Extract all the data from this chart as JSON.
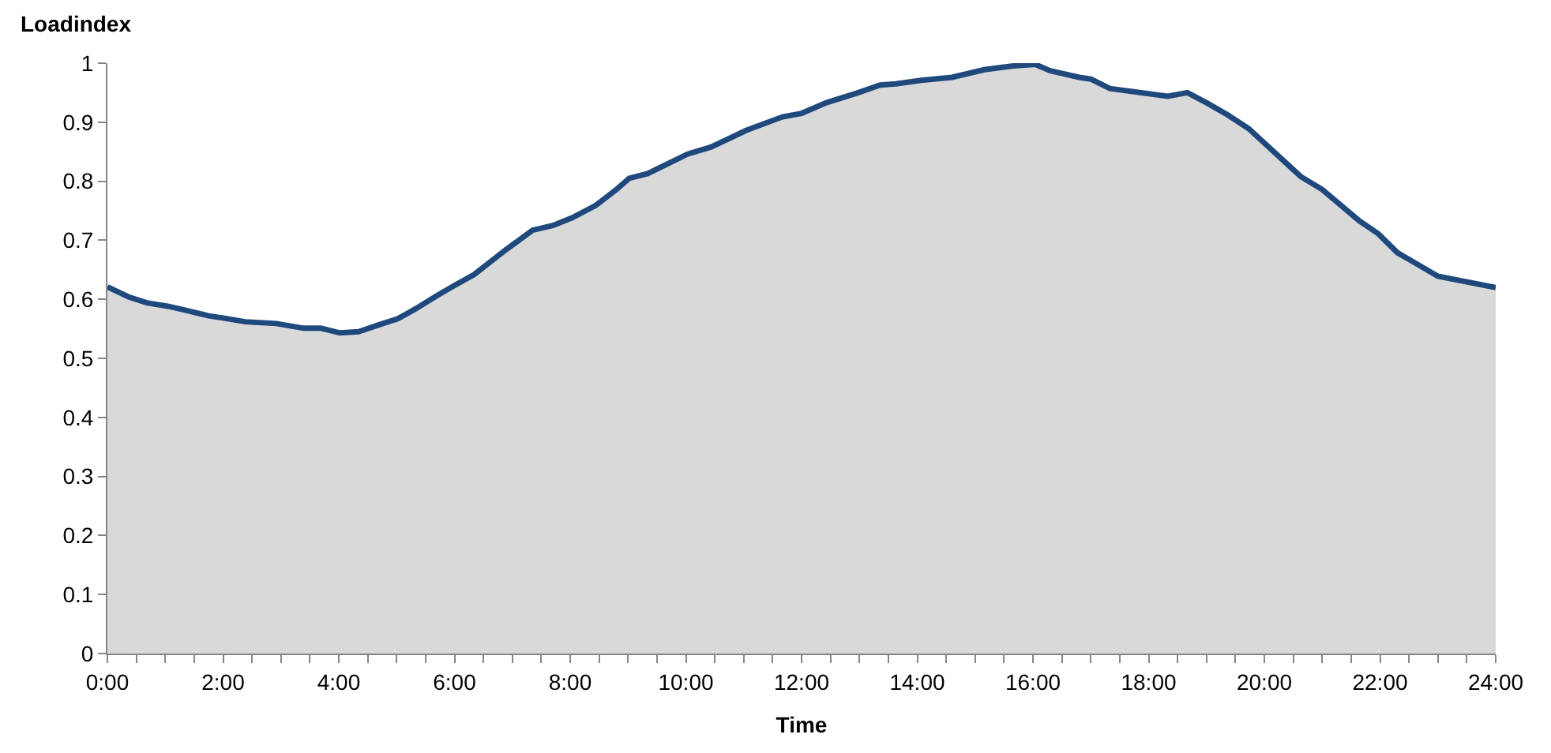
{
  "chart_data": {
    "type": "area",
    "ylabel": "Loadindex",
    "xlabel": "Time",
    "x": [
      0,
      0.37,
      0.68,
      1.06,
      1.37,
      1.75,
      2.02,
      2.38,
      2.92,
      3.39,
      3.69,
      4.02,
      4.34,
      4.7,
      5.02,
      5.33,
      5.71,
      6.01,
      6.34,
      6.89,
      7.35,
      7.7,
      8.03,
      8.44,
      8.8,
      9.02,
      9.34,
      10.03,
      10.44,
      11.04,
      11.67,
      12.0,
      12.43,
      12.95,
      13.36,
      13.63,
      14.07,
      14.6,
      15.16,
      15.63,
      16.04,
      16.3,
      16.8,
      17.0,
      17.33,
      18.33,
      18.67,
      19.0,
      19.37,
      19.73,
      20.63,
      21.0,
      21.64,
      21.97,
      22.3,
      23.0,
      24.0
    ],
    "series": [
      {
        "color": "#1f497d",
        "values": [
          0.621,
          0.604,
          0.594,
          0.588,
          0.581,
          0.572,
          0.568,
          0.562,
          0.559,
          0.551,
          0.551,
          0.543,
          0.545,
          0.557,
          0.567,
          0.584,
          0.607,
          0.624,
          0.642,
          0.684,
          0.717,
          0.725,
          0.738,
          0.759,
          0.786,
          0.805,
          0.813,
          0.846,
          0.858,
          0.886,
          0.909,
          0.915,
          0.933,
          0.949,
          0.963,
          0.965,
          0.971,
          0.976,
          0.989,
          0.995,
          0.998,
          0.987,
          0.976,
          0.973,
          0.957,
          0.944,
          0.95,
          0.933,
          0.912,
          0.889,
          0.808,
          0.786,
          0.733,
          0.711,
          0.679,
          0.639,
          0.62
        ]
      }
    ],
    "xlim": [
      0,
      24
    ],
    "xticks": [
      {
        "value": 0,
        "label": "0:00"
      },
      {
        "value": 0.5,
        "label": null
      },
      {
        "value": 1,
        "label": null
      },
      {
        "value": 1.5,
        "label": null
      },
      {
        "value": 2,
        "label": "2:00"
      },
      {
        "value": 2.5,
        "label": null
      },
      {
        "value": 3,
        "label": null
      },
      {
        "value": 3.5,
        "label": null
      },
      {
        "value": 4,
        "label": "4:00"
      },
      {
        "value": 4.5,
        "label": null
      },
      {
        "value": 5,
        "label": null
      },
      {
        "value": 5.5,
        "label": null
      },
      {
        "value": 6,
        "label": "6:00"
      },
      {
        "value": 6.5,
        "label": null
      },
      {
        "value": 7,
        "label": null
      },
      {
        "value": 7.5,
        "label": null
      },
      {
        "value": 8,
        "label": "8:00"
      },
      {
        "value": 8.5,
        "label": null
      },
      {
        "value": 9,
        "label": null
      },
      {
        "value": 9.5,
        "label": null
      },
      {
        "value": 10,
        "label": "10:00"
      },
      {
        "value": 10.5,
        "label": null
      },
      {
        "value": 11,
        "label": null
      },
      {
        "value": 11.5,
        "label": null
      },
      {
        "value": 12,
        "label": "12:00"
      },
      {
        "value": 12.5,
        "label": null
      },
      {
        "value": 13,
        "label": null
      },
      {
        "value": 13.5,
        "label": null
      },
      {
        "value": 14,
        "label": "14:00"
      },
      {
        "value": 14.5,
        "label": null
      },
      {
        "value": 15,
        "label": null
      },
      {
        "value": 15.5,
        "label": null
      },
      {
        "value": 16,
        "label": "16:00"
      },
      {
        "value": 16.5,
        "label": null
      },
      {
        "value": 17,
        "label": null
      },
      {
        "value": 17.5,
        "label": null
      },
      {
        "value": 18,
        "label": "18:00"
      },
      {
        "value": 18.5,
        "label": null
      },
      {
        "value": 19,
        "label": null
      },
      {
        "value": 19.5,
        "label": null
      },
      {
        "value": 20,
        "label": "20:00"
      },
      {
        "value": 20.5,
        "label": null
      },
      {
        "value": 21,
        "label": null
      },
      {
        "value": 21.5,
        "label": null
      },
      {
        "value": 22,
        "label": "22:00"
      },
      {
        "value": 22.5,
        "label": null
      },
      {
        "value": 23,
        "label": null
      },
      {
        "value": 23.5,
        "label": null
      },
      {
        "value": 24,
        "label": "24:00"
      }
    ],
    "ylim": [
      0,
      1
    ],
    "yticks": [
      0,
      0.1,
      0.2,
      0.3,
      0.4,
      0.5,
      0.6,
      0.7,
      0.8,
      0.9,
      1
    ],
    "legend": false,
    "marker": "none",
    "line_style": "solid"
  }
}
